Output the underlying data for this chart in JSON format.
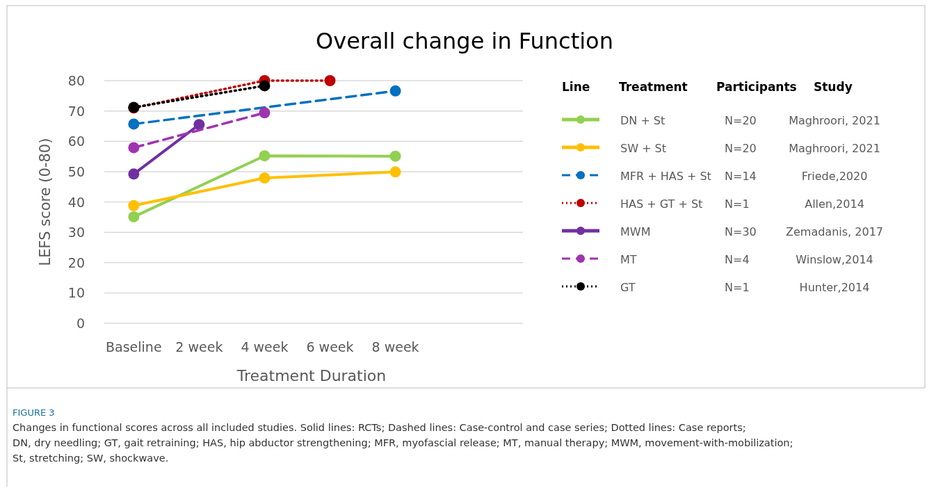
{
  "chart_data": {
    "type": "line",
    "title": "Overall change in Function",
    "xlabel": "Treatment Duration",
    "ylabel": "LEFS score (0-80)",
    "categories": [
      "Baseline",
      "2 week",
      "4 week",
      "6 week",
      "8 week"
    ],
    "ylim": [
      0,
      80
    ],
    "yticks": [
      0,
      10,
      20,
      30,
      40,
      50,
      60,
      70,
      80
    ],
    "grid": "y",
    "legend": "right",
    "marker": "circle",
    "series": [
      {
        "name": "DN + St",
        "color": "#92d050",
        "line_style": "solid",
        "values": [
          35.1,
          null,
          55.2,
          null,
          55.1
        ]
      },
      {
        "name": "SW + St",
        "color": "#ffc000",
        "line_style": "solid",
        "values": [
          38.8,
          null,
          47.9,
          null,
          49.9
        ]
      },
      {
        "name": "MFR + HAS + St",
        "color": "#0070c0",
        "line_style": "dashed",
        "values": [
          65.7,
          null,
          null,
          null,
          76.6
        ]
      },
      {
        "name": "HAS + GT + St",
        "color": "#c00000",
        "line_style": "dotted",
        "values": [
          71,
          null,
          80,
          80,
          null
        ]
      },
      {
        "name": "MWM",
        "color": "#7030a0",
        "line_style": "solid",
        "values": [
          49.2,
          65.5,
          null,
          null,
          null
        ]
      },
      {
        "name": "MT",
        "color": "#a033b0",
        "line_style": "dashed",
        "values": [
          57.9,
          null,
          69.4,
          null,
          null
        ]
      },
      {
        "name": "GT",
        "color": "#000000",
        "line_style": "dotted",
        "values": [
          71.2,
          null,
          78.3,
          null,
          null
        ]
      }
    ],
    "annotations": [
      "Line",
      "Treatment",
      "Participants",
      "Study",
      "N=20",
      "Maghroori, 2021",
      "N=20",
      "Maghroori, 2021",
      "N=14",
      "Friede,2020",
      "N=1",
      "Allen,2014",
      "N=30",
      "Zemadanis, 2017",
      "N=4",
      "Winslow,2014",
      "N=1",
      "Hunter,2014",
      "FIGURE 3",
      "Changes in functional scores across all included studies. Solid lines: RCTs; Dashed lines: Case-control and case series; Dotted lines: Case reports; DN, dry needling; GT, gait retraining; HAS, hip abductor strengthening; MFR, myofascial release; MT, manual therapy; MWM, movement-with-mobilization; St, stretching; SW, shockwave."
    ]
  }
}
